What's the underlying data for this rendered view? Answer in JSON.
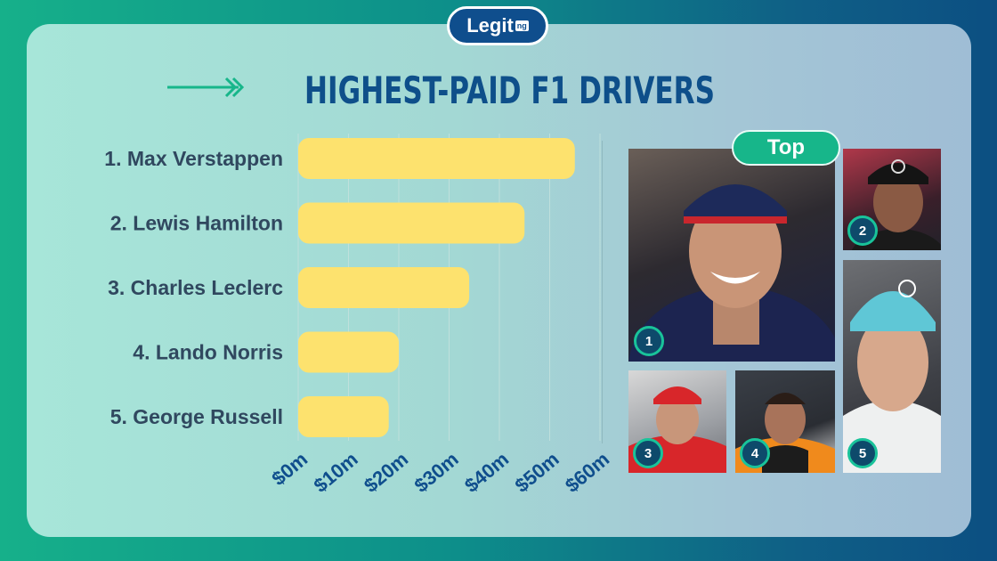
{
  "brand": {
    "logo_text": "Legit",
    "logo_suffix": "ng"
  },
  "title": "HIGHEST-PAID F1 DRIVERS",
  "top_label": "Top",
  "colors": {
    "bar": "#fde26e",
    "title": "#0e4f8a",
    "accent": "#17b68a",
    "badge_ring": "#19c39a"
  },
  "chart_data": {
    "type": "bar",
    "orientation": "horizontal",
    "categories": [
      "1. Max Verstappen",
      "2. Lewis Hamilton",
      "3. Charles Leclerc",
      "4. Lando Norris",
      "5. George Russell"
    ],
    "values": [
      55,
      45,
      34,
      20,
      18
    ],
    "xlim": [
      0,
      60
    ],
    "x_ticks": [
      "$0m",
      "$10m",
      "$20m",
      "$30m",
      "$40m",
      "$50m",
      "$60m"
    ],
    "grid": true
  },
  "photos": [
    {
      "rank": "1",
      "name": "Max Verstappen"
    },
    {
      "rank": "2",
      "name": "Lewis Hamilton"
    },
    {
      "rank": "3",
      "name": "Charles Leclerc"
    },
    {
      "rank": "4",
      "name": "Lando Norris"
    },
    {
      "rank": "5",
      "name": "George Russell"
    }
  ]
}
